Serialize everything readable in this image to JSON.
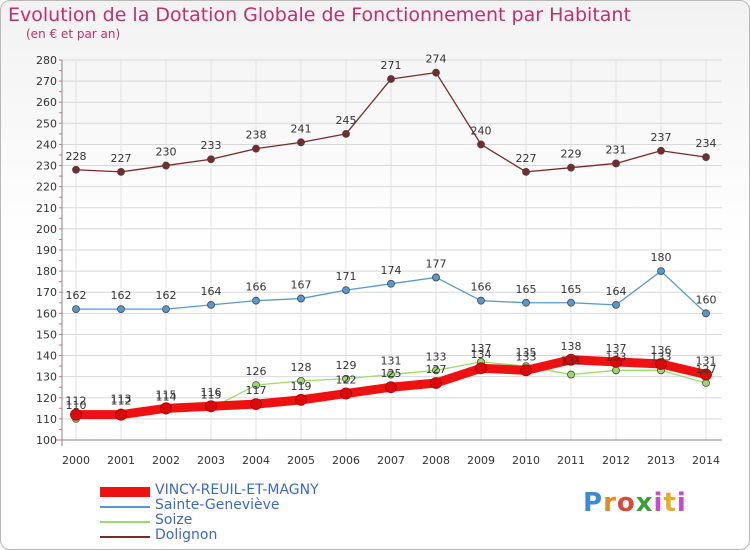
{
  "title": "Evolution de la Dotation Globale de Fonctionnement par Habitant",
  "subtitle": "(en € et par an)",
  "logo": "Proxiti",
  "chart_data": {
    "type": "line",
    "title": "Evolution de la Dotation Globale de Fonctionnement par Habitant",
    "ylabel": "(en € et par an)",
    "xlabel": "",
    "ylim": [
      100,
      280
    ],
    "yticks": [
      100,
      110,
      120,
      130,
      140,
      150,
      160,
      170,
      180,
      190,
      200,
      210,
      220,
      230,
      240,
      250,
      260,
      270,
      280
    ],
    "x": [
      "2000",
      "2001",
      "2002",
      "2003",
      "2004",
      "2005",
      "2006",
      "2007",
      "2008",
      "2009",
      "2010",
      "2011",
      "2012",
      "2013",
      "2014"
    ],
    "series": [
      {
        "name": "VINCY-REUIL-ET-MAGNY",
        "color": "#ee1111",
        "values": [
          112,
          112,
          115,
          116,
          117,
          119,
          122,
          125,
          127,
          134,
          133,
          138,
          137,
          136,
          131
        ]
      },
      {
        "name": "Sainte-Geneviève",
        "color": "#5599d0",
        "values": [
          162,
          162,
          162,
          164,
          166,
          167,
          171,
          174,
          177,
          166,
          165,
          165,
          164,
          180,
          160
        ]
      },
      {
        "name": "Soize",
        "color": "#99dd66",
        "values": [
          110,
          113,
          114,
          115,
          126,
          128,
          129,
          131,
          133,
          137,
          135,
          131,
          133,
          133,
          127
        ]
      },
      {
        "name": "Dolignon",
        "color": "#7a2a2a",
        "values": [
          228,
          227,
          230,
          233,
          238,
          241,
          245,
          271,
          274,
          240,
          227,
          229,
          231,
          237,
          234
        ]
      }
    ],
    "legend": "bottom-left",
    "grid": true
  }
}
